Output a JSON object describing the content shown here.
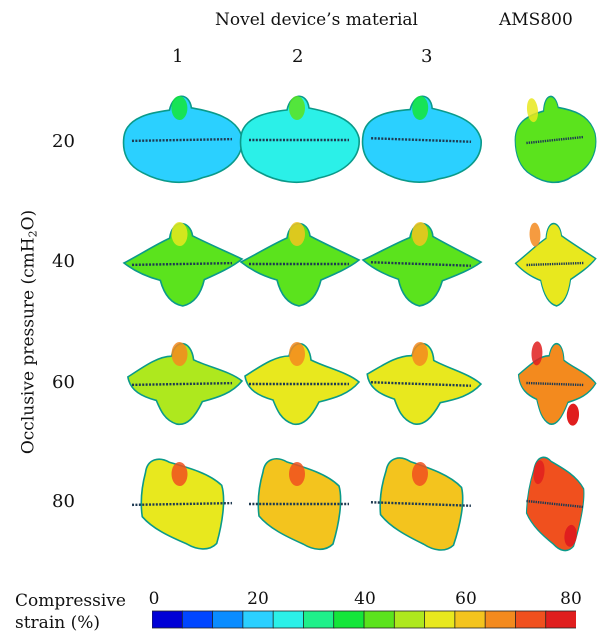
{
  "header": {
    "group_title": "Novel device’s material",
    "ams_title": "AMS800",
    "columns": [
      "1",
      "2",
      "3"
    ]
  },
  "rows": [
    {
      "pressure": "20",
      "strain_levels": [
        22,
        24,
        22,
        40
      ]
    },
    {
      "pressure": "40",
      "strain_levels": [
        40,
        42,
        42,
        52
      ]
    },
    {
      "pressure": "60",
      "strain_levels": [
        48,
        52,
        52,
        64
      ]
    },
    {
      "pressure": "80",
      "strain_levels": [
        56,
        58,
        58,
        70
      ]
    }
  ],
  "y_axis": {
    "label_main": "Occlusive pressure (cmH",
    "label_sub": "2",
    "label_end": "O)"
  },
  "colorbar": {
    "label_line1": "Compressive",
    "label_line2": "strain (%)",
    "ticks": [
      "0",
      "20",
      "40",
      "60",
      "80"
    ],
    "range": [
      0,
      80
    ],
    "colors": [
      "#0000d6",
      "#0046ff",
      "#0a8cff",
      "#2bd0ff",
      "#2bf0e8",
      "#1ff08a",
      "#14e63a",
      "#5be31d",
      "#aee81e",
      "#e8e81e",
      "#f3c41e",
      "#f38a1e",
      "#f0501e",
      "#e01e1e"
    ]
  }
}
